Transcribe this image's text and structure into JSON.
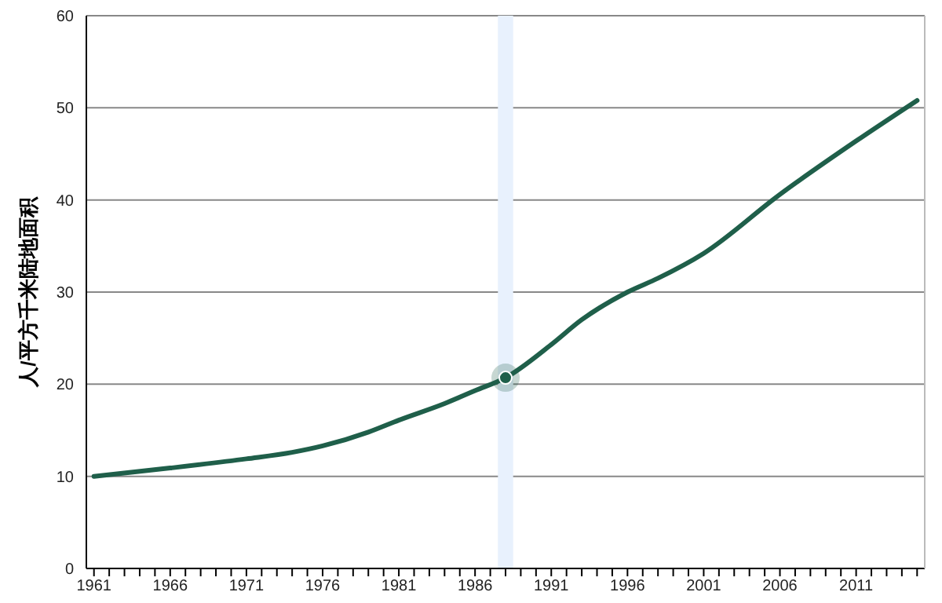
{
  "chart_data": {
    "type": "line",
    "ylabel": "人/平方千米陆地面积",
    "series": [
      {
        "color": "#1f5f4a",
        "marker": "none",
        "x": [
          1961,
          1966,
          1971,
          1974,
          1976,
          1979,
          1981,
          1984,
          1986,
          1988,
          1991,
          1993,
          1996,
          1998,
          2001,
          2006,
          2011,
          2015
        ],
        "values": [
          10.0,
          10.9,
          11.9,
          12.6,
          13.3,
          14.8,
          16.1,
          17.9,
          19.3,
          20.7,
          24.3,
          27.0,
          30.0,
          31.5,
          34.2,
          40.6,
          46.4,
          50.8
        ]
      },
      {
        "type": "scatter",
        "marker": "circle",
        "color": "#1f5f4a",
        "x": [
          1988
        ],
        "values": [
          20.7
        ]
      }
    ],
    "xlim": [
      1960.5,
      2015.5
    ],
    "xticks": [
      1961,
      {
        "value": 1962,
        "label": null
      },
      {
        "value": 1963,
        "label": null
      },
      {
        "value": 1964,
        "label": null
      },
      {
        "value": 1965,
        "label": null
      },
      1966,
      {
        "value": 1967,
        "label": null
      },
      {
        "value": 1968,
        "label": null
      },
      {
        "value": 1969,
        "label": null
      },
      {
        "value": 1970,
        "label": null
      },
      1971,
      {
        "value": 1972,
        "label": null
      },
      {
        "value": 1973,
        "label": null
      },
      {
        "value": 1974,
        "label": null
      },
      {
        "value": 1975,
        "label": null
      },
      1976,
      {
        "value": 1977,
        "label": null
      },
      {
        "value": 1978,
        "label": null
      },
      {
        "value": 1979,
        "label": null
      },
      {
        "value": 1980,
        "label": null
      },
      1981,
      {
        "value": 1982,
        "label": null
      },
      {
        "value": 1983,
        "label": null
      },
      {
        "value": 1984,
        "label": null
      },
      {
        "value": 1985,
        "label": null
      },
      1986,
      {
        "value": 1987,
        "label": null
      },
      {
        "value": 1988,
        "label": null
      },
      {
        "value": 1989,
        "label": null
      },
      {
        "value": 1990,
        "label": null
      },
      1991,
      {
        "value": 1992,
        "label": null
      },
      {
        "value": 1993,
        "label": null
      },
      {
        "value": 1994,
        "label": null
      },
      {
        "value": 1995,
        "label": null
      },
      1996,
      {
        "value": 1997,
        "label": null
      },
      {
        "value": 1998,
        "label": null
      },
      {
        "value": 1999,
        "label": null
      },
      {
        "value": 2000,
        "label": null
      },
      2001,
      {
        "value": 2002,
        "label": null
      },
      {
        "value": 2003,
        "label": null
      },
      {
        "value": 2004,
        "label": null
      },
      {
        "value": 2005,
        "label": null
      },
      2006,
      {
        "value": 2007,
        "label": null
      },
      {
        "value": 2008,
        "label": null
      },
      {
        "value": 2009,
        "label": null
      },
      {
        "value": 2010,
        "label": null
      },
      2011,
      {
        "value": 2012,
        "label": null
      },
      {
        "value": 2013,
        "label": null
      },
      {
        "value": 2014,
        "label": null
      },
      {
        "value": 2015,
        "label": null
      }
    ],
    "ylim": [
      0,
      60
    ],
    "yticks": [
      0,
      10,
      20,
      30,
      40,
      50,
      60
    ],
    "grid": "y",
    "line_style": "solid",
    "bands": [
      {
        "axis": "x",
        "from": 1987.5,
        "to": 1988.5,
        "color": "#e8f1fd"
      }
    ]
  }
}
